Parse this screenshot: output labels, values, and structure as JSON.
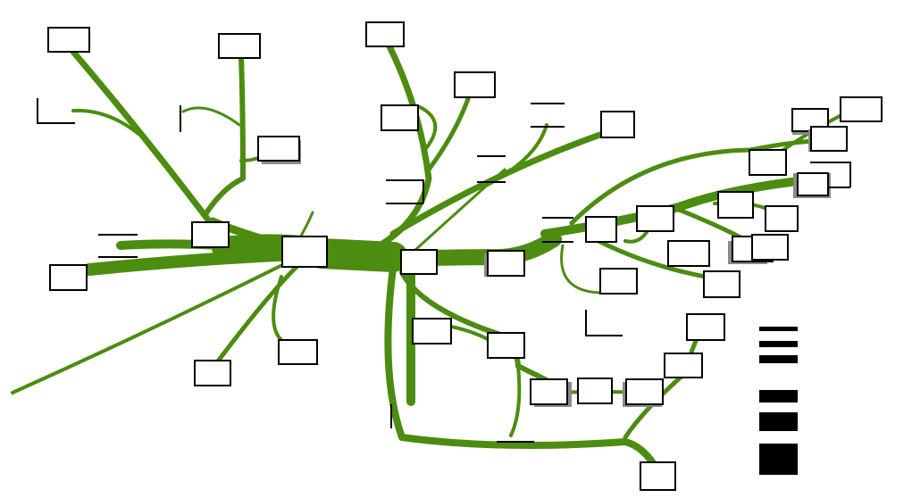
{
  "diagram": {
    "type": "flow-map",
    "title": "",
    "node_labels": [],
    "legend": {
      "labels": [],
      "bars": [
        {
          "level": 1
        },
        {
          "level": 2
        },
        {
          "level": 3
        },
        {
          "level": 4
        },
        {
          "level": 5
        },
        {
          "level": 6
        }
      ]
    }
  },
  "colors": {
    "flow": "#4c8c10",
    "box_border": "#000000",
    "box_shadow": "#8a8a8a",
    "background": "#ffffff"
  }
}
